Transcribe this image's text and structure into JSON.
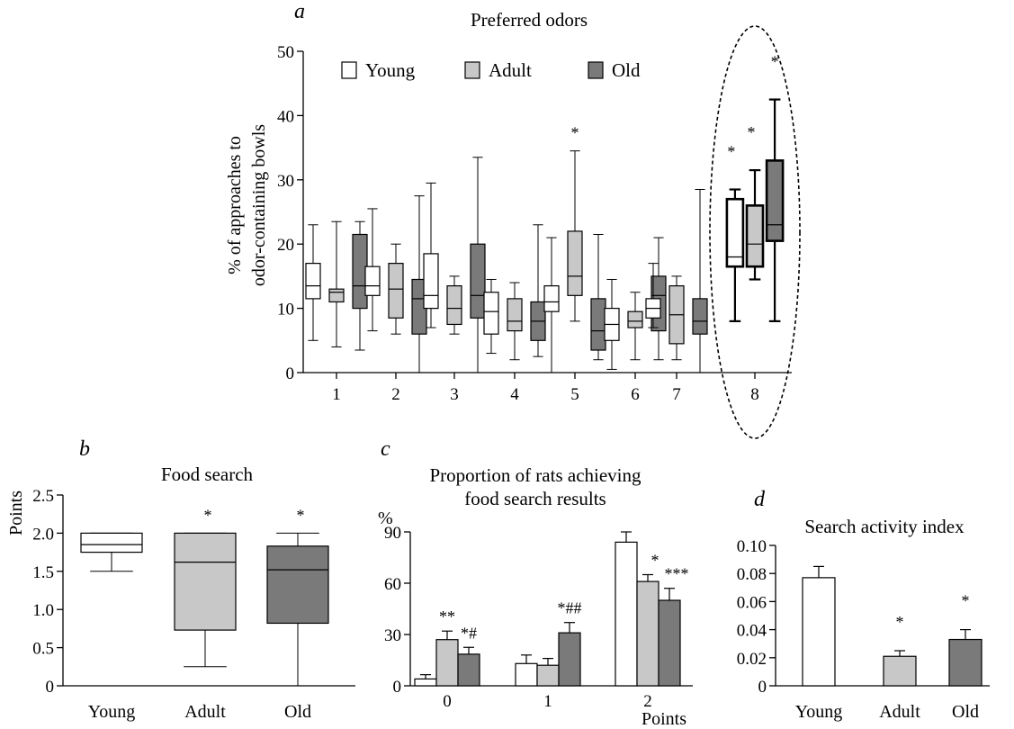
{
  "colors": {
    "young": "#ffffff",
    "adult": "#c8c8c8",
    "old": "#7a7a7a",
    "stroke": "#000000"
  },
  "panels": [
    {
      "letter": "a",
      "title": "Preferred odors"
    },
    {
      "letter": "b",
      "title": "Food search"
    },
    {
      "letter": "c",
      "title": "Proportion of rats achieving\nfood search results"
    },
    {
      "letter": "d",
      "title": "Search activity index"
    }
  ],
  "chart_data": [
    {
      "panel": "a",
      "type": "box",
      "title": "Preferred odors",
      "ylabel": "% of approaches to\nodor-containing bowls",
      "ylim": [
        0,
        50
      ],
      "yticks": [
        0,
        10,
        20,
        30,
        40,
        50
      ],
      "categories": [
        "1",
        "2",
        "3",
        "4",
        "5",
        "6",
        "7",
        "8"
      ],
      "legend": [
        "Young",
        "Adult",
        "Old"
      ],
      "highlight": "8",
      "series": [
        {
          "name": "Young",
          "boxes": [
            {
              "min": 5,
              "q1": 11.5,
              "median": 13.5,
              "q3": 17,
              "max": 23
            },
            {
              "min": 6.5,
              "q1": 12,
              "median": 13.5,
              "q3": 16.5,
              "max": 25.5
            },
            {
              "min": 7,
              "q1": 10,
              "median": 12,
              "q3": 18.5,
              "max": 29.5
            },
            {
              "min": 3,
              "q1": 6,
              "median": 9.5,
              "q3": 12.5,
              "max": 14.5
            },
            {
              "min": 0,
              "q1": 9.5,
              "median": 11,
              "q3": 13.5,
              "max": 21
            },
            {
              "min": 0.5,
              "q1": 5,
              "median": 7.5,
              "q3": 10,
              "max": 14.5
            },
            {
              "min": 7,
              "q1": 8.5,
              "median": 10,
              "q3": 11.5,
              "max": 17
            },
            {
              "min": 8,
              "q1": 16.5,
              "median": 18,
              "q3": 27,
              "max": 28.5,
              "star": "*"
            }
          ]
        },
        {
          "name": "Adult",
          "boxes": [
            {
              "min": 4,
              "q1": 11,
              "median": 12.5,
              "q3": 13,
              "max": 23.5
            },
            {
              "min": 6,
              "q1": 8.5,
              "median": 13,
              "q3": 17,
              "max": 20
            },
            {
              "min": 6,
              "q1": 7.5,
              "median": 10,
              "q3": 13.5,
              "max": 15
            },
            {
              "min": 2,
              "q1": 6.5,
              "median": 8,
              "q3": 11.5,
              "max": 14
            },
            {
              "min": 8,
              "q1": 12,
              "median": 15,
              "q3": 22,
              "max": 34.5,
              "star": "*"
            },
            {
              "min": 2,
              "q1": 7,
              "median": 8,
              "q3": 9.5,
              "max": 12.5
            },
            {
              "min": 2,
              "q1": 4.5,
              "median": 9,
              "q3": 13.5,
              "max": 15
            },
            {
              "min": 14.5,
              "q1": 16.5,
              "median": 20,
              "q3": 26,
              "max": 31.5,
              "star": "*"
            }
          ]
        },
        {
          "name": "Old",
          "boxes": [
            {
              "min": 3.5,
              "q1": 10,
              "median": 13.5,
              "q3": 21.5,
              "max": 23.5
            },
            {
              "min": 0,
              "q1": 6,
              "median": 11.5,
              "q3": 14.5,
              "max": 27.5
            },
            {
              "min": 0,
              "q1": 8.5,
              "median": 12,
              "q3": 20,
              "max": 33.5
            },
            {
              "min": 2.5,
              "q1": 5,
              "median": 8,
              "q3": 11,
              "max": 23
            },
            {
              "min": 2,
              "q1": 3.5,
              "median": 6.5,
              "q3": 11.5,
              "max": 21.5
            },
            {
              "min": 2,
              "q1": 6.5,
              "median": 12,
              "q3": 15,
              "max": 21
            },
            {
              "min": 0,
              "q1": 6,
              "median": 8,
              "q3": 11.5,
              "max": 28.5
            },
            {
              "min": 8,
              "q1": 20.5,
              "median": 23,
              "q3": 33,
              "max": 42.5,
              "star": "*"
            }
          ]
        }
      ]
    },
    {
      "panel": "b",
      "type": "box",
      "title": "Food search",
      "ylabel": "Points",
      "ylim": [
        0,
        2.5
      ],
      "yticks": [
        "0",
        "0.5",
        "1.0",
        "1.5",
        "2.0",
        "2.5"
      ],
      "categories": [
        "Young",
        "Adult",
        "Old"
      ],
      "boxes": [
        {
          "name": "Young",
          "min": 1.5,
          "q1": 1.75,
          "median": 1.85,
          "q3": 2.0,
          "max": 2.0,
          "star": ""
        },
        {
          "name": "Adult",
          "min": 0.25,
          "q1": 0.73,
          "median": 1.62,
          "q3": 2.0,
          "max": 2.0,
          "star": "*"
        },
        {
          "name": "Old",
          "min": 0,
          "q1": 0.82,
          "median": 1.52,
          "q3": 1.83,
          "max": 2.0,
          "star": "*"
        }
      ]
    },
    {
      "panel": "c",
      "type": "bar",
      "title": "Proportion of rats achieving\nfood search results",
      "ylabel": "%",
      "xlabel": "Points",
      "ylim": [
        0,
        90
      ],
      "yticks": [
        0,
        30,
        60,
        90
      ],
      "categories": [
        "0",
        "1",
        "2"
      ],
      "series": [
        {
          "name": "Young",
          "values": [
            4,
            13,
            84
          ],
          "errors": [
            2.5,
            5,
            6
          ],
          "marks": [
            "",
            "",
            ""
          ]
        },
        {
          "name": "Adult",
          "values": [
            27,
            12,
            61
          ],
          "errors": [
            5,
            4,
            4
          ],
          "marks": [
            "**",
            "",
            "*"
          ]
        },
        {
          "name": "Old",
          "values": [
            18.5,
            31,
            50
          ],
          "errors": [
            4,
            6,
            7
          ],
          "marks": [
            "*#",
            "*##",
            "***"
          ]
        }
      ]
    },
    {
      "panel": "d",
      "type": "bar",
      "title": "Search activity index",
      "ylim": [
        0,
        0.1
      ],
      "yticks": [
        "0",
        "0.02",
        "0.04",
        "0.06",
        "0.08",
        "0.10"
      ],
      "categories": [
        "Young",
        "Adult",
        "Old"
      ],
      "values": [
        0.077,
        0.021,
        0.033
      ],
      "errors": [
        0.008,
        0.004,
        0.007
      ],
      "marks": [
        "",
        "*",
        "*"
      ]
    }
  ]
}
